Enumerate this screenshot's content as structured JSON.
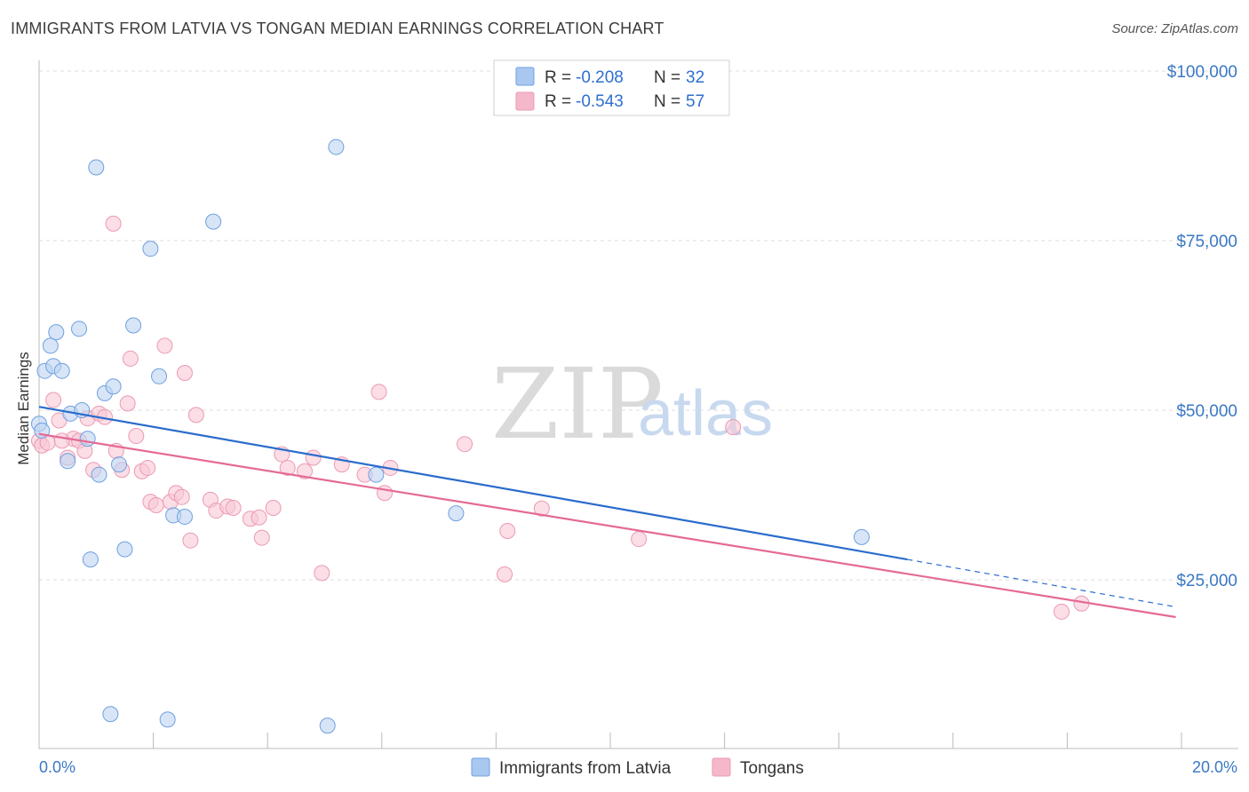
{
  "title": "IMMIGRANTS FROM LATVIA VS TONGAN MEDIAN EARNINGS CORRELATION CHART",
  "source": "Source: ZipAtlas.com",
  "watermark": {
    "part1": "ZIP",
    "part2": "atlas"
  },
  "legend": {
    "rows": [
      {
        "r_label": "R = ",
        "r_value": "-0.208",
        "n_label": "N = ",
        "n_value": "32",
        "color": "#a9c8f0"
      },
      {
        "r_label": "R = ",
        "r_value": "-0.543",
        "n_label": "N = ",
        "n_value": "57",
        "color": "#f5b8cb"
      }
    ]
  },
  "bottom_legend": [
    "Immigrants from Latvia",
    "Tongans"
  ],
  "chart_data": {
    "type": "scatter",
    "ylabel": "Median Earnings",
    "xlabel": "",
    "xlim": [
      0,
      20
    ],
    "ylim": [
      0,
      105000
    ],
    "x_tick_labels": {
      "left": "0.0%",
      "right": "20.0%"
    },
    "y_ticks": [
      {
        "value": 25000,
        "label": "$25,000"
      },
      {
        "value": 50000,
        "label": "$50,000"
      },
      {
        "value": 75000,
        "label": "$75,000"
      },
      {
        "value": 100000,
        "label": "$100,000"
      }
    ],
    "grid": true,
    "series": [
      {
        "name": "Immigrants from Latvia",
        "color": "#6fa0e0",
        "fill": "#bcd4f2",
        "line_color": "#2a6ccc",
        "trend": {
          "x0": 0.0,
          "y0": 50500,
          "x1": 15.2,
          "y1": 28000,
          "dash_x1": 19.9,
          "dash_y1": 21000
        },
        "points": [
          [
            0.0,
            48000
          ],
          [
            0.1,
            55800
          ],
          [
            0.2,
            59500
          ],
          [
            0.25,
            56500
          ],
          [
            0.3,
            61500
          ],
          [
            0.4,
            55800
          ],
          [
            0.5,
            42500
          ],
          [
            0.55,
            49500
          ],
          [
            0.7,
            62000
          ],
          [
            0.75,
            50000
          ],
          [
            0.85,
            45800
          ],
          [
            0.9,
            28000
          ],
          [
            1.0,
            85800
          ],
          [
            1.05,
            40500
          ],
          [
            1.15,
            52500
          ],
          [
            1.25,
            5200
          ],
          [
            1.3,
            53500
          ],
          [
            1.4,
            42000
          ],
          [
            1.5,
            29500
          ],
          [
            1.65,
            62500
          ],
          [
            1.95,
            73800
          ],
          [
            2.1,
            55000
          ],
          [
            2.25,
            4400
          ],
          [
            2.35,
            34500
          ],
          [
            2.55,
            34300
          ],
          [
            3.05,
            77800
          ],
          [
            5.05,
            3500
          ],
          [
            5.2,
            88800
          ],
          [
            5.9,
            40500
          ],
          [
            7.3,
            34800
          ],
          [
            14.4,
            31300
          ],
          [
            0.05,
            47000
          ]
        ]
      },
      {
        "name": "Tongans",
        "color": "#ec9ab3",
        "fill": "#f8c8d6",
        "line_color": "#e46a95",
        "trend": {
          "x0": 0.0,
          "y0": 46500,
          "x1": 19.9,
          "y1": 19500
        },
        "points": [
          [
            0.0,
            45500
          ],
          [
            0.05,
            44800
          ],
          [
            0.15,
            45200
          ],
          [
            0.25,
            51500
          ],
          [
            0.35,
            48500
          ],
          [
            0.5,
            43000
          ],
          [
            0.6,
            45800
          ],
          [
            0.7,
            45500
          ],
          [
            0.8,
            44000
          ],
          [
            0.85,
            48800
          ],
          [
            0.95,
            41200
          ],
          [
            1.05,
            49500
          ],
          [
            1.15,
            49000
          ],
          [
            1.3,
            77500
          ],
          [
            1.35,
            44000
          ],
          [
            1.45,
            41200
          ],
          [
            1.55,
            51000
          ],
          [
            1.6,
            57600
          ],
          [
            1.7,
            46200
          ],
          [
            1.8,
            41000
          ],
          [
            1.9,
            41500
          ],
          [
            1.95,
            36500
          ],
          [
            2.05,
            36000
          ],
          [
            2.2,
            59500
          ],
          [
            2.3,
            36500
          ],
          [
            2.4,
            37800
          ],
          [
            2.5,
            37200
          ],
          [
            2.55,
            55500
          ],
          [
            2.65,
            30800
          ],
          [
            2.75,
            49300
          ],
          [
            3.0,
            36800
          ],
          [
            3.1,
            35200
          ],
          [
            3.3,
            35800
          ],
          [
            3.4,
            35600
          ],
          [
            3.7,
            34000
          ],
          [
            3.85,
            34200
          ],
          [
            3.9,
            31200
          ],
          [
            4.1,
            35600
          ],
          [
            4.25,
            43500
          ],
          [
            4.35,
            41500
          ],
          [
            4.65,
            41000
          ],
          [
            4.8,
            43000
          ],
          [
            4.95,
            26000
          ],
          [
            5.3,
            42000
          ],
          [
            5.7,
            40500
          ],
          [
            5.95,
            52700
          ],
          [
            6.05,
            37800
          ],
          [
            6.15,
            41500
          ],
          [
            7.45,
            45000
          ],
          [
            8.15,
            25800
          ],
          [
            8.2,
            32200
          ],
          [
            8.8,
            35500
          ],
          [
            10.5,
            31000
          ],
          [
            12.15,
            47500
          ],
          [
            17.9,
            20300
          ],
          [
            18.25,
            21500
          ],
          [
            0.4,
            45500
          ]
        ]
      }
    ]
  }
}
